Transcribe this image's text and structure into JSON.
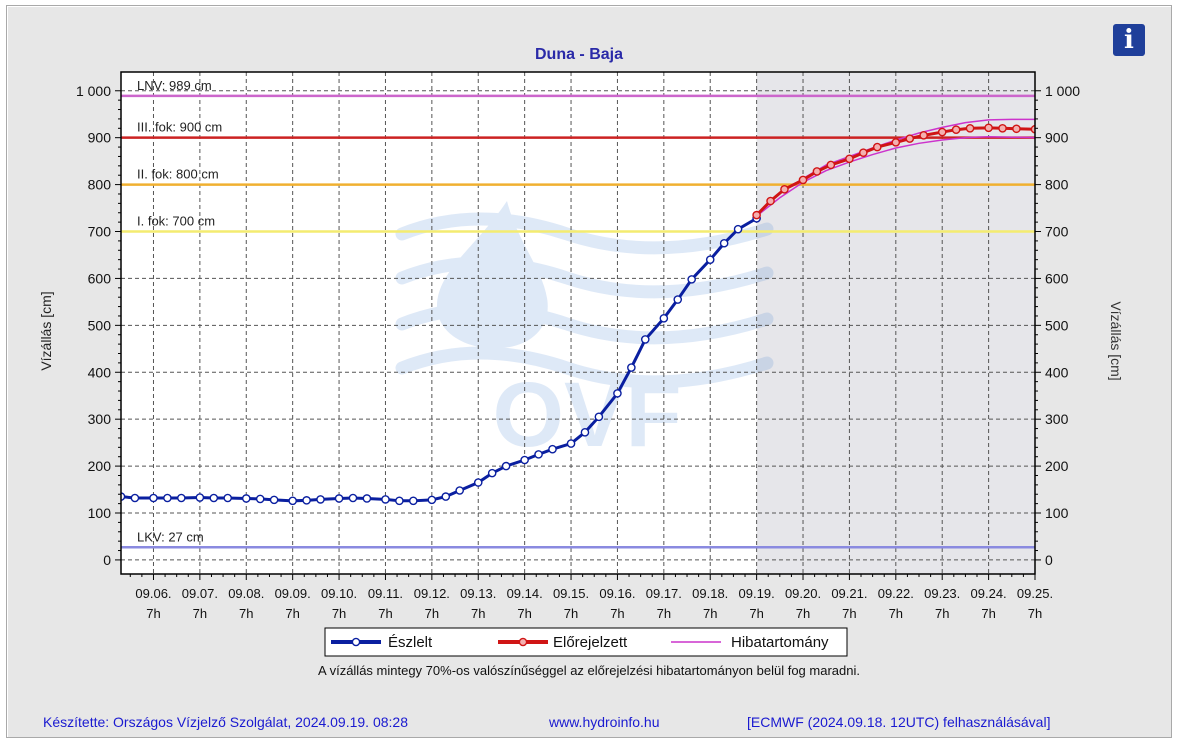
{
  "info_button": {
    "label": "i",
    "icon": "info-icon"
  },
  "footer": {
    "author": "Készítette: Országos Vízjelző Szolgálat, 2024.09.19. 08:28",
    "website": "www.hydroinfo.hu",
    "model": "[ECMWF (2024.09.18. 12UTC) felhasználásával]"
  },
  "note": "A vízállás mintegy 70%-os valószínűséggel az előrejelzési hibatartományon belül fog maradni.",
  "watermark": {
    "text": "OVF",
    "icon": "water-drop-waves-logo"
  },
  "chart_data": {
    "type": "line",
    "title": "Duna - Baja",
    "ylabel_left": "Vízállás [cm]",
    "ylabel_right": "Vízállás [cm]",
    "ylim": [
      -30,
      1040
    ],
    "yticks": [
      0,
      100,
      200,
      300,
      400,
      500,
      600,
      700,
      800,
      900,
      1000
    ],
    "ytick_labels": [
      "0",
      "100",
      "200",
      "300",
      "400",
      "500",
      "600",
      "700",
      "800",
      "900",
      "1 000"
    ],
    "xlim_days": [
      5.3,
      25.0
    ],
    "xticks": [
      {
        "date": "09.06.",
        "hour": "7h"
      },
      {
        "date": "09.07.",
        "hour": "7h"
      },
      {
        "date": "09.08.",
        "hour": "7h"
      },
      {
        "date": "09.09.",
        "hour": "7h"
      },
      {
        "date": "09.10.",
        "hour": "7h"
      },
      {
        "date": "09.11.",
        "hour": "7h"
      },
      {
        "date": "09.12.",
        "hour": "7h"
      },
      {
        "date": "09.13.",
        "hour": "7h"
      },
      {
        "date": "09.14.",
        "hour": "7h"
      },
      {
        "date": "09.15.",
        "hour": "7h"
      },
      {
        "date": "09.16.",
        "hour": "7h"
      },
      {
        "date": "09.17.",
        "hour": "7h"
      },
      {
        "date": "09.18.",
        "hour": "7h"
      },
      {
        "date": "09.19.",
        "hour": "7h"
      },
      {
        "date": "09.20.",
        "hour": "7h"
      },
      {
        "date": "09.21.",
        "hour": "7h"
      },
      {
        "date": "09.22.",
        "hour": "7h"
      },
      {
        "date": "09.23.",
        "hour": "7h"
      },
      {
        "date": "09.24.",
        "hour": "7h"
      },
      {
        "date": "09.25.",
        "hour": "7h"
      }
    ],
    "forecast_start_day": 19.0,
    "levels": [
      {
        "label": "LNV: 989 cm",
        "value": 989,
        "color": "#cc66cc"
      },
      {
        "label": "III. fok: 900 cm",
        "value": 900,
        "color": "#cc2222"
      },
      {
        "label": "II. fok: 800 cm",
        "value": 800,
        "color": "#f0b030"
      },
      {
        "label": "I. fok: 700 cm",
        "value": 700,
        "color": "#f4ec70"
      },
      {
        "label": "LKV: 27 cm",
        "value": 27,
        "color": "#8a8ae0"
      }
    ],
    "legend": [
      {
        "name": "Észlelt",
        "color": "#0a1fa0",
        "marker": "#ffffff"
      },
      {
        "name": "Előrejelzett",
        "color": "#d01515",
        "marker": "#f4b0b0"
      },
      {
        "name": "Hibatartomány",
        "color": "#cc33cc"
      }
    ],
    "observed": {
      "name": "Észlelt",
      "x": [
        5.3,
        5.6,
        6.0,
        6.3,
        6.6,
        7.0,
        7.3,
        7.6,
        8.0,
        8.3,
        8.6,
        9.0,
        9.3,
        9.6,
        10.0,
        10.3,
        10.6,
        11.0,
        11.3,
        11.6,
        12.0,
        12.3,
        12.6,
        13.0,
        13.3,
        13.6,
        14.0,
        14.3,
        14.6,
        15.0,
        15.3,
        15.6,
        16.0,
        16.3,
        16.6,
        17.0,
        17.3,
        17.6,
        18.0,
        18.3,
        18.6,
        19.0
      ],
      "y": [
        135,
        132,
        132,
        132,
        132,
        133,
        132,
        132,
        131,
        130,
        128,
        126,
        127,
        129,
        131,
        132,
        131,
        129,
        126,
        126,
        128,
        135,
        148,
        165,
        185,
        200,
        213,
        225,
        236,
        248,
        272,
        305,
        355,
        410,
        470,
        515,
        555,
        598,
        640,
        675,
        705,
        728
      ]
    },
    "forecast": {
      "name": "Előrejelzett",
      "x": [
        19.0,
        19.3,
        19.6,
        20.0,
        20.3,
        20.6,
        21.0,
        21.3,
        21.6,
        22.0,
        22.3,
        22.6,
        23.0,
        23.3,
        23.6,
        24.0,
        24.3,
        24.6,
        25.0
      ],
      "y": [
        735,
        765,
        790,
        810,
        828,
        842,
        855,
        868,
        880,
        890,
        898,
        905,
        912,
        917,
        920,
        921,
        920,
        919,
        918
      ]
    },
    "error_band": {
      "name": "Hibatartomány",
      "x": [
        19.0,
        19.5,
        20.0,
        20.5,
        21.0,
        21.5,
        22.0,
        22.5,
        23.0,
        23.5,
        24.0,
        24.5,
        25.0
      ],
      "upper": [
        737,
        782,
        813,
        842,
        860,
        878,
        895,
        910,
        922,
        932,
        938,
        939,
        939
      ],
      "lower": [
        733,
        772,
        805,
        830,
        848,
        864,
        878,
        888,
        895,
        900,
        902,
        901,
        900
      ]
    }
  }
}
